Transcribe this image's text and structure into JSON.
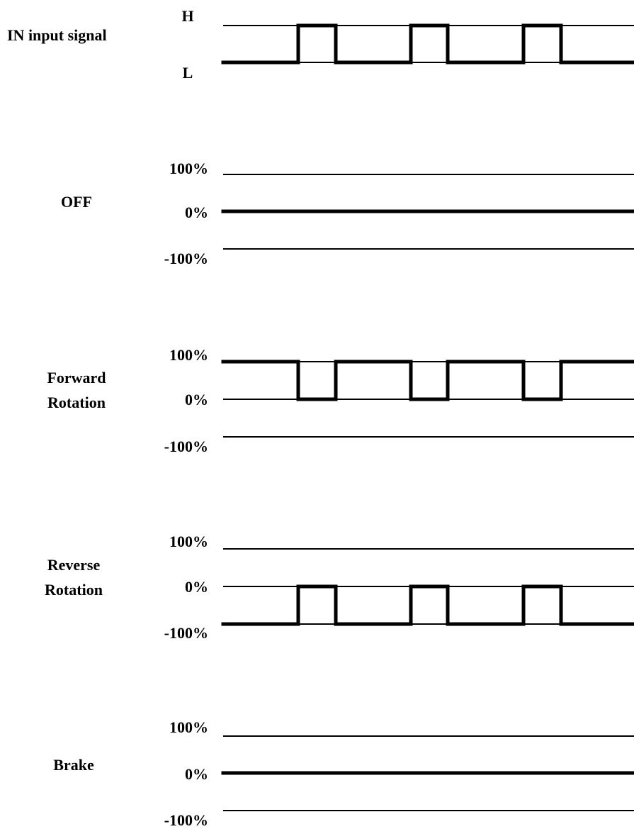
{
  "input_row": {
    "title": "IN input signal",
    "high_label": "H",
    "low_label": "L",
    "waveform": "pulse-high"
  },
  "pulse_count": 3,
  "output_rows": [
    {
      "title_lines": [
        "OFF"
      ],
      "labels": {
        "top": "100%",
        "mid": "0%",
        "bottom": "-100%"
      },
      "waveform": "flat-zero"
    },
    {
      "title_lines": [
        "Forward",
        "Rotation"
      ],
      "labels": {
        "top": "100%",
        "mid": "0%",
        "bottom": "-100%"
      },
      "waveform": "high-with-dips-to-zero"
    },
    {
      "title_lines": [
        "Reverse",
        "Rotation"
      ],
      "labels": {
        "top": "100%",
        "mid": "0%",
        "bottom": "-100%"
      },
      "waveform": "low-with-rises-to-zero"
    },
    {
      "title_lines": [
        "Brake"
      ],
      "labels": {
        "top": "100%",
        "mid": "0%",
        "bottom": "-100%"
      },
      "waveform": "flat-zero"
    }
  ]
}
